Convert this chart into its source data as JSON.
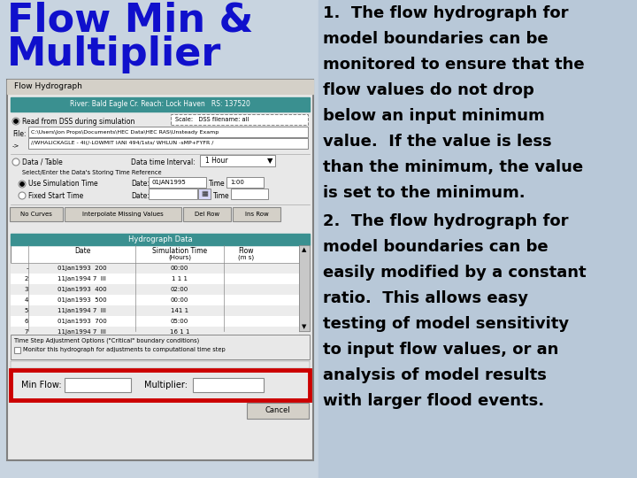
{
  "title_line1": "Flow Min &",
  "title_line2": "Multiplier",
  "title_color": "#1010cc",
  "title_fontsize": 32,
  "bg_left_color": "#c8d4e0",
  "bg_right_color": "#b8c8d8",
  "teal_color": "#3a9090",
  "dialog_border": "#808080",
  "dialog_bg": "#e8e8e8",
  "dialog_title_bar": "#d4d0c8",
  "p1_lines": [
    "1.  The flow hydrograph for",
    "model boundaries can be",
    "monitored to ensure that the",
    "flow values do not drop",
    "below an input minimum",
    "value.  If the value is less",
    "than the minimum, the value",
    "is set to the minimum."
  ],
  "p2_lines": [
    "2.  The flow hydrograph for",
    "model boundaries can be",
    "easily modified by a constant",
    "ratio.  This allows easy",
    "testing of model sensitivity",
    "to input flow values, or an",
    "analysis of model results",
    "with larger flood events."
  ],
  "text_fontsize": 13,
  "text_color": "#000000",
  "red_box_color": "#cc0000",
  "teal_header_text": "River: Bald Eagle Cr. Reach: Lock Haven   RS: 137520",
  "hydrograph_data_header": "Hydrograph Data",
  "rows": [
    [
      "-",
      "01Jan1993  200",
      "00:00"
    ],
    [
      "2",
      "11Jan1994 7  III",
      "1 1 1"
    ],
    [
      "3",
      "01Jan1993  400",
      "02:00"
    ],
    [
      "4",
      "01Jan1993  500",
      "00:00"
    ],
    [
      "5",
      "11Jan1994 7  III",
      "141 1"
    ],
    [
      "6",
      "01Jan1993  700",
      "05:00"
    ],
    [
      "7",
      "11Jan1994 7  III",
      "16 1 1"
    ]
  ]
}
